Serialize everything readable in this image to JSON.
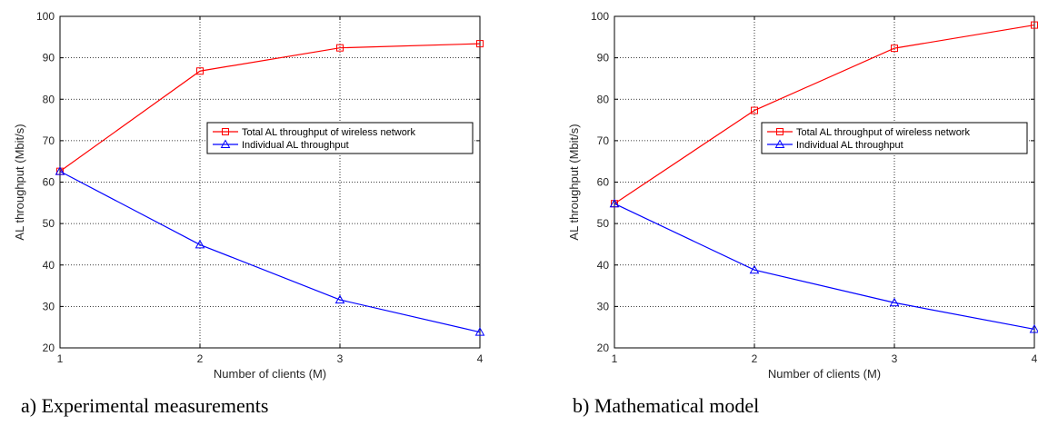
{
  "chart_data": [
    {
      "type": "line",
      "x": [
        1,
        2,
        3,
        4
      ],
      "series": [
        {
          "name": "Total AL throughput of wireless network",
          "values": [
            62.6,
            86.8,
            92.4,
            93.4
          ],
          "color": "#ff0000",
          "marker": "square"
        },
        {
          "name": "Individual AL throughput",
          "values": [
            62.6,
            44.9,
            31.6,
            23.8
          ],
          "color": "#0000ff",
          "marker": "triangle"
        }
      ],
      "xlabel": "Number of clients (M)",
      "ylabel": "AL throughput (Mbit/s)",
      "xlim": [
        1,
        4
      ],
      "ylim": [
        20,
        100
      ],
      "xticks": [
        "1",
        "2",
        "3",
        "4"
      ],
      "yticks": [
        "20",
        "30",
        "40",
        "50",
        "60",
        "70",
        "80",
        "90",
        "100"
      ],
      "grid": true,
      "legend_position": "center-right",
      "caption": "a) Experimental measurements"
    },
    {
      "type": "line",
      "x": [
        1,
        2,
        3,
        4
      ],
      "series": [
        {
          "name": "Total AL throughput of wireless network",
          "values": [
            54.8,
            77.3,
            92.3,
            97.9
          ],
          "color": "#ff0000",
          "marker": "square"
        },
        {
          "name": "Individual AL throughput",
          "values": [
            54.8,
            38.8,
            30.9,
            24.5
          ],
          "color": "#0000ff",
          "marker": "triangle"
        }
      ],
      "xlabel": "Number of clients (M)",
      "ylabel": "AL throughput (Mbit/s)",
      "xlim": [
        1,
        4
      ],
      "ylim": [
        20,
        100
      ],
      "xticks": [
        "1",
        "2",
        "3",
        "4"
      ],
      "yticks": [
        "20",
        "30",
        "40",
        "50",
        "60",
        "70",
        "80",
        "90",
        "100"
      ],
      "grid": true,
      "legend_position": "center-right",
      "caption": "b) Mathematical model"
    }
  ]
}
